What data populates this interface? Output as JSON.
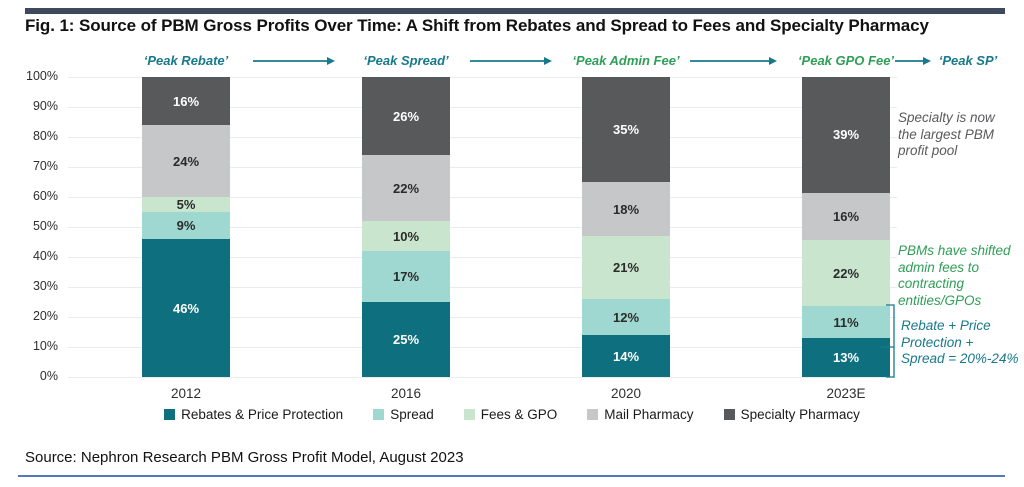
{
  "figure": {
    "title": "Fig. 1:  Source of PBM Gross Profits Over Time: A Shift from Rebates and Spread to Fees and Specialty Pharmacy",
    "source": "Source: Nephron Research PBM Gross Profit Model, August 2023"
  },
  "colors": {
    "top_rule": "#3D4A5D",
    "bottom_rule": "#5377BE",
    "teal_text": "#17798B",
    "green_text": "#2F9E56",
    "gray_text": "#595A5C",
    "gridline": "#EAEBEB",
    "arrow": "#17798B"
  },
  "peak_flow": [
    {
      "label": "‘Peak Rebate’",
      "color": "#17798B"
    },
    {
      "label": "‘Peak Spread’",
      "color": "#17798B"
    },
    {
      "label": "‘Peak Admin Fee’",
      "color": "#2F9E56"
    },
    {
      "label": "‘Peak GPO Fee’",
      "color": "#2F9E56"
    },
    {
      "label": "‘Peak SP’",
      "color": "#17798B"
    }
  ],
  "annotations": [
    {
      "lines": [
        "Specialty is now",
        "the largest PBM",
        "profit pool"
      ],
      "color": "#595A5C"
    },
    {
      "lines": [
        "PBMs have shifted",
        "admin fees to",
        "contracting",
        "entities/GPOs"
      ],
      "color": "#2F9E56"
    },
    {
      "lines": [
        "Rebate + Price",
        "Protection +",
        "Spread = 20%-24%"
      ],
      "color": "#17798B"
    }
  ],
  "chart_data": {
    "type": "bar",
    "stacked": true,
    "categories": [
      "2012",
      "2016",
      "2020",
      "2023E"
    ],
    "series": [
      {
        "name": "Rebates & Price Protection",
        "color": "#0E6F7E",
        "label_color": "#FFFFFF",
        "values": [
          46,
          25,
          14,
          13
        ]
      },
      {
        "name": "Spread",
        "color": "#9FD8D1",
        "label_color": "#2B2B2B",
        "values": [
          9,
          17,
          12,
          11
        ]
      },
      {
        "name": "Fees & GPO",
        "color": "#C9E5CE",
        "label_color": "#2B2B2B",
        "values": [
          5,
          10,
          21,
          22
        ]
      },
      {
        "name": "Mail Pharmacy",
        "color": "#C6C7C8",
        "label_color": "#2B2B2B",
        "values": [
          24,
          22,
          18,
          16
        ]
      },
      {
        "name": "Specialty Pharmacy",
        "color": "#58595B",
        "label_color": "#FFFFFF",
        "values": [
          16,
          26,
          35,
          39
        ]
      }
    ],
    "value_suffix": "%",
    "ylim": [
      0,
      100
    ],
    "ytick_step": 10,
    "ytick_suffix": "%",
    "grid": true,
    "legend_position": "bottom",
    "xlabel": "",
    "ylabel": ""
  }
}
